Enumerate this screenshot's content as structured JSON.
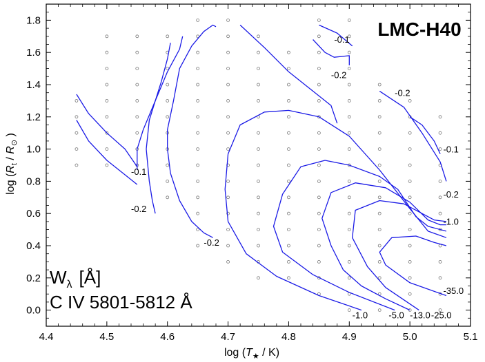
{
  "chart_data": {
    "type": "scatter",
    "title": "LMC-H40",
    "annotation_lines": [
      "W",
      "λ",
      "[Å]",
      "C IV 5801-5812 Å"
    ],
    "xlabel_parts": [
      "log (",
      "T",
      "★",
      " / K)"
    ],
    "ylabel_parts": [
      "log (",
      "R",
      "t",
      " / ",
      "R",
      "⊙",
      " )"
    ],
    "xlim": [
      4.4,
      5.1
    ],
    "ylim": [
      -0.1,
      1.9
    ],
    "xticks": [
      "4.4",
      "4.5",
      "4.6",
      "4.7",
      "4.8",
      "4.9",
      "5.0",
      "5.1"
    ],
    "yticks": [
      "0.0",
      "0.2",
      "0.4",
      "0.6",
      "0.8",
      "1.0",
      "1.2",
      "1.4",
      "1.6",
      "1.8"
    ],
    "grid": false,
    "model_points": [
      [
        4.45,
        1.3
      ],
      [
        4.45,
        1.2
      ],
      [
        4.45,
        1.1
      ],
      [
        4.45,
        1.0
      ],
      [
        4.45,
        0.9
      ],
      [
        4.5,
        1.7
      ],
      [
        4.5,
        1.6
      ],
      [
        4.5,
        1.5
      ],
      [
        4.5,
        1.4
      ],
      [
        4.5,
        1.3
      ],
      [
        4.5,
        1.2
      ],
      [
        4.5,
        1.1
      ],
      [
        4.5,
        1.0
      ],
      [
        4.5,
        0.9
      ],
      [
        4.55,
        1.7
      ],
      [
        4.55,
        1.6
      ],
      [
        4.55,
        1.5
      ],
      [
        4.55,
        1.4
      ],
      [
        4.55,
        1.3
      ],
      [
        4.55,
        1.2
      ],
      [
        4.55,
        1.1
      ],
      [
        4.55,
        1.0
      ],
      [
        4.55,
        0.9
      ],
      [
        4.6,
        1.7
      ],
      [
        4.6,
        1.6
      ],
      [
        4.6,
        1.5
      ],
      [
        4.6,
        1.4
      ],
      [
        4.6,
        1.3
      ],
      [
        4.6,
        1.2
      ],
      [
        4.6,
        1.1
      ],
      [
        4.6,
        1.0
      ],
      [
        4.6,
        0.9
      ],
      [
        4.6,
        0.8
      ],
      [
        4.6,
        0.7
      ],
      [
        4.65,
        1.8
      ],
      [
        4.65,
        1.7
      ],
      [
        4.65,
        1.6
      ],
      [
        4.65,
        1.5
      ],
      [
        4.65,
        1.4
      ],
      [
        4.65,
        1.3
      ],
      [
        4.65,
        1.2
      ],
      [
        4.65,
        1.1
      ],
      [
        4.65,
        1.0
      ],
      [
        4.65,
        0.9
      ],
      [
        4.65,
        0.8
      ],
      [
        4.65,
        0.7
      ],
      [
        4.65,
        0.6
      ],
      [
        4.65,
        0.5
      ],
      [
        4.65,
        0.4
      ],
      [
        4.7,
        1.8
      ],
      [
        4.7,
        1.7
      ],
      [
        4.7,
        1.6
      ],
      [
        4.7,
        1.5
      ],
      [
        4.7,
        1.4
      ],
      [
        4.7,
        1.3
      ],
      [
        4.7,
        1.2
      ],
      [
        4.7,
        1.1
      ],
      [
        4.7,
        1.0
      ],
      [
        4.7,
        0.9
      ],
      [
        4.7,
        0.8
      ],
      [
        4.7,
        0.7
      ],
      [
        4.7,
        0.6
      ],
      [
        4.7,
        0.5
      ],
      [
        4.7,
        0.4
      ],
      [
        4.7,
        0.3
      ],
      [
        4.75,
        1.7
      ],
      [
        4.75,
        1.6
      ],
      [
        4.75,
        1.5
      ],
      [
        4.75,
        1.4
      ],
      [
        4.75,
        1.3
      ],
      [
        4.75,
        1.2
      ],
      [
        4.75,
        1.1
      ],
      [
        4.75,
        1.0
      ],
      [
        4.75,
        0.9
      ],
      [
        4.75,
        0.8
      ],
      [
        4.75,
        0.7
      ],
      [
        4.75,
        0.6
      ],
      [
        4.75,
        0.5
      ],
      [
        4.75,
        0.4
      ],
      [
        4.75,
        0.3
      ],
      [
        4.75,
        0.2
      ],
      [
        4.8,
        1.6
      ],
      [
        4.8,
        1.5
      ],
      [
        4.8,
        1.4
      ],
      [
        4.8,
        1.3
      ],
      [
        4.8,
        1.2
      ],
      [
        4.8,
        1.1
      ],
      [
        4.8,
        1.0
      ],
      [
        4.8,
        0.9
      ],
      [
        4.8,
        0.8
      ],
      [
        4.8,
        0.7
      ],
      [
        4.8,
        0.6
      ],
      [
        4.8,
        0.5
      ],
      [
        4.8,
        0.4
      ],
      [
        4.8,
        0.3
      ],
      [
        4.8,
        0.2
      ],
      [
        4.85,
        1.8
      ],
      [
        4.85,
        1.7
      ],
      [
        4.85,
        1.6
      ],
      [
        4.85,
        1.5
      ],
      [
        4.85,
        1.4
      ],
      [
        4.85,
        1.3
      ],
      [
        4.85,
        1.2
      ],
      [
        4.85,
        1.1
      ],
      [
        4.85,
        1.0
      ],
      [
        4.85,
        0.9
      ],
      [
        4.85,
        0.8
      ],
      [
        4.85,
        0.7
      ],
      [
        4.85,
        0.6
      ],
      [
        4.85,
        0.5
      ],
      [
        4.85,
        0.4
      ],
      [
        4.85,
        0.3
      ],
      [
        4.85,
        0.2
      ],
      [
        4.85,
        0.1
      ],
      [
        4.9,
        1.8
      ],
      [
        4.9,
        1.7
      ],
      [
        4.9,
        1.6
      ],
      [
        4.9,
        1.5
      ],
      [
        4.9,
        1.4
      ],
      [
        4.9,
        1.3
      ],
      [
        4.9,
        1.2
      ],
      [
        4.9,
        1.1
      ],
      [
        4.9,
        1.0
      ],
      [
        4.9,
        0.9
      ],
      [
        4.9,
        0.8
      ],
      [
        4.9,
        0.7
      ],
      [
        4.9,
        0.6
      ],
      [
        4.9,
        0.5
      ],
      [
        4.9,
        0.4
      ],
      [
        4.9,
        0.3
      ],
      [
        4.9,
        0.2
      ],
      [
        4.9,
        0.1
      ],
      [
        4.9,
        0.0
      ],
      [
        4.95,
        1.4
      ],
      [
        4.95,
        1.3
      ],
      [
        4.95,
        1.2
      ],
      [
        4.95,
        1.1
      ],
      [
        4.95,
        1.0
      ],
      [
        4.95,
        0.9
      ],
      [
        4.95,
        0.8
      ],
      [
        4.95,
        0.7
      ],
      [
        4.95,
        0.6
      ],
      [
        4.95,
        0.5
      ],
      [
        4.95,
        0.4
      ],
      [
        4.95,
        0.3
      ],
      [
        4.95,
        0.2
      ],
      [
        4.95,
        0.1
      ],
      [
        4.95,
        0.0
      ],
      [
        5.0,
        1.3
      ],
      [
        5.0,
        1.2
      ],
      [
        5.0,
        1.1
      ],
      [
        5.0,
        1.0
      ],
      [
        5.0,
        0.9
      ],
      [
        5.0,
        0.8
      ],
      [
        5.0,
        0.7
      ],
      [
        5.0,
        0.6
      ],
      [
        5.0,
        0.5
      ],
      [
        5.0,
        0.4
      ],
      [
        5.0,
        0.3
      ],
      [
        5.0,
        0.2
      ],
      [
        5.0,
        0.1
      ],
      [
        5.0,
        0.0
      ],
      [
        5.05,
        1.2
      ],
      [
        5.05,
        1.1
      ],
      [
        5.05,
        1.0
      ],
      [
        5.05,
        0.9
      ],
      [
        5.05,
        0.8
      ],
      [
        5.05,
        0.7
      ],
      [
        5.05,
        0.6
      ],
      [
        5.05,
        0.5
      ],
      [
        5.05,
        0.4
      ],
      [
        5.05,
        0.3
      ],
      [
        5.05,
        0.2
      ],
      [
        5.05,
        0.1
      ],
      [
        5.05,
        0.0
      ]
    ],
    "contours": [
      {
        "label": "-0.1",
        "points": [
          [
            4.45,
            1.34
          ],
          [
            4.47,
            1.22
          ],
          [
            4.5,
            1.1
          ],
          [
            4.53,
            1.0
          ],
          [
            4.55,
            0.89
          ]
        ]
      },
      {
        "label": "-0.1",
        "points": [
          [
            4.45,
            1.18
          ],
          [
            4.47,
            1.05
          ],
          [
            4.5,
            0.93
          ],
          [
            4.53,
            0.84
          ],
          [
            4.55,
            0.78
          ]
        ]
      },
      {
        "label": "-0.1",
        "points": [
          [
            4.55,
            0.87
          ],
          [
            4.55,
            1.0
          ],
          [
            4.56,
            1.12
          ],
          [
            4.58,
            1.3
          ],
          [
            4.6,
            1.48
          ],
          [
            4.62,
            1.62
          ],
          [
            4.625,
            1.7
          ]
        ]
      },
      {
        "label": "-0.2",
        "points": [
          [
            4.58,
            0.6
          ],
          [
            4.575,
            0.68
          ],
          [
            4.57,
            0.8
          ],
          [
            4.565,
            1.0
          ],
          [
            4.57,
            1.18
          ],
          [
            4.58,
            1.3
          ],
          [
            4.59,
            1.42
          ],
          [
            4.6,
            1.56
          ],
          [
            4.605,
            1.66
          ]
        ]
      },
      {
        "label": "-0.2",
        "points": [
          [
            4.675,
            0.45
          ],
          [
            4.66,
            0.48
          ],
          [
            4.64,
            0.55
          ],
          [
            4.62,
            0.68
          ],
          [
            4.605,
            0.85
          ],
          [
            4.6,
            1.0
          ],
          [
            4.6,
            1.12
          ],
          [
            4.61,
            1.3
          ],
          [
            4.62,
            1.5
          ],
          [
            4.64,
            1.64
          ],
          [
            4.66,
            1.73
          ],
          [
            4.675,
            1.77
          ],
          [
            4.68,
            1.76
          ]
        ]
      },
      {
        "label": "-0.2",
        "points": [
          [
            4.72,
            1.77
          ],
          [
            4.76,
            1.63
          ],
          [
            4.8,
            1.48
          ],
          [
            4.84,
            1.36
          ],
          [
            4.87,
            1.27
          ],
          [
            4.88,
            1.16
          ]
        ]
      },
      {
        "label": "-0.2",
        "points": [
          [
            4.84,
            1.68
          ],
          [
            4.86,
            1.6
          ],
          [
            4.875,
            1.57
          ],
          [
            4.9,
            1.58
          ],
          [
            4.9,
            1.52
          ]
        ]
      },
      {
        "label": "-0.1",
        "points": [
          [
            4.85,
            1.77
          ],
          [
            4.88,
            1.72
          ],
          [
            4.905,
            1.64
          ]
        ]
      },
      {
        "label": "-0.2",
        "points": [
          [
            4.95,
            1.36
          ],
          [
            4.99,
            1.26
          ],
          [
            5.02,
            1.1
          ],
          [
            5.05,
            0.92
          ],
          [
            5.06,
            0.8
          ]
        ]
      },
      {
        "label": "-0.1",
        "points": [
          [
            5.0,
            1.2
          ],
          [
            5.02,
            1.15
          ],
          [
            5.04,
            1.05
          ],
          [
            5.05,
            0.97
          ]
        ]
      },
      {
        "label": "-1.0",
        "points": [
          [
            4.92,
            0.0
          ],
          [
            4.85,
            0.09
          ],
          [
            4.78,
            0.21
          ],
          [
            4.73,
            0.35
          ],
          [
            4.7,
            0.55
          ],
          [
            4.695,
            0.75
          ],
          [
            4.7,
            0.97
          ],
          [
            4.72,
            1.15
          ],
          [
            4.76,
            1.23
          ],
          [
            4.8,
            1.24
          ],
          [
            4.85,
            1.2
          ],
          [
            4.9,
            1.08
          ],
          [
            4.95,
            0.87
          ],
          [
            5.0,
            0.63
          ],
          [
            5.03,
            0.49
          ],
          [
            5.06,
            0.45
          ]
        ]
      },
      {
        "label": "-5.0",
        "points": [
          [
            4.975,
            0.0
          ],
          [
            4.9,
            0.11
          ],
          [
            4.84,
            0.22
          ],
          [
            4.79,
            0.36
          ],
          [
            4.775,
            0.52
          ],
          [
            4.79,
            0.72
          ],
          [
            4.82,
            0.89
          ],
          [
            4.86,
            0.93
          ],
          [
            4.9,
            0.9
          ],
          [
            4.95,
            0.83
          ],
          [
            4.98,
            0.75
          ],
          [
            5.01,
            0.58
          ],
          [
            5.03,
            0.52
          ],
          [
            5.06,
            0.49
          ]
        ]
      },
      {
        "label": "-13.0",
        "points": [
          [
            5.0,
            0.0
          ],
          [
            4.96,
            0.07
          ],
          [
            4.92,
            0.15
          ],
          [
            4.89,
            0.25
          ],
          [
            4.87,
            0.4
          ],
          [
            4.855,
            0.57
          ],
          [
            4.87,
            0.73
          ],
          [
            4.91,
            0.79
          ],
          [
            4.96,
            0.76
          ],
          [
            5.0,
            0.67
          ],
          [
            5.03,
            0.56
          ],
          [
            5.05,
            0.53
          ],
          [
            5.06,
            0.53
          ]
        ]
      },
      {
        "label": "-25.0",
        "points": [
          [
            5.015,
            0.0
          ],
          [
            4.96,
            0.14
          ],
          [
            4.93,
            0.27
          ],
          [
            4.905,
            0.45
          ],
          [
            4.91,
            0.62
          ],
          [
            4.95,
            0.68
          ],
          [
            4.99,
            0.66
          ],
          [
            5.02,
            0.6
          ],
          [
            5.04,
            0.56
          ],
          [
            5.06,
            0.55
          ]
        ]
      },
      {
        "label": "-35.0",
        "points": [
          [
            5.06,
            0.09
          ],
          [
            5.0,
            0.17
          ],
          [
            4.96,
            0.28
          ],
          [
            4.95,
            0.36
          ],
          [
            4.97,
            0.45
          ],
          [
            5.01,
            0.46
          ],
          [
            5.04,
            0.42
          ],
          [
            5.06,
            0.4
          ]
        ]
      }
    ],
    "contour_labels": [
      {
        "text": "-0.1",
        "x": 4.875,
        "y": 1.66
      },
      {
        "text": "-0.2",
        "x": 4.87,
        "y": 1.44
      },
      {
        "text": "-0.2",
        "x": 4.975,
        "y": 1.33
      },
      {
        "text": "-0.1",
        "x": 4.54,
        "y": 0.84
      },
      {
        "text": "-0.2",
        "x": 4.54,
        "y": 0.61
      },
      {
        "text": "-0.2",
        "x": 4.66,
        "y": 0.4
      },
      {
        "text": "-0.1",
        "x": 5.055,
        "y": 0.98
      },
      {
        "text": "-0.2",
        "x": 5.055,
        "y": 0.7
      },
      {
        "text": "-1.0",
        "x": 5.055,
        "y": 0.53
      },
      {
        "text": "-35.0",
        "x": 5.055,
        "y": 0.1
      },
      {
        "text": "-1.0",
        "x": 4.905,
        "y": -0.05
      },
      {
        "text": "-5.0",
        "x": 4.965,
        "y": -0.05
      },
      {
        "text": "-13.0",
        "x": 5.0,
        "y": -0.05
      },
      {
        "text": "-25.0",
        "x": 5.035,
        "y": -0.05
      }
    ],
    "colors": {
      "contour": "#1a1ae6",
      "points": "#777777",
      "axes": "#000000"
    }
  }
}
